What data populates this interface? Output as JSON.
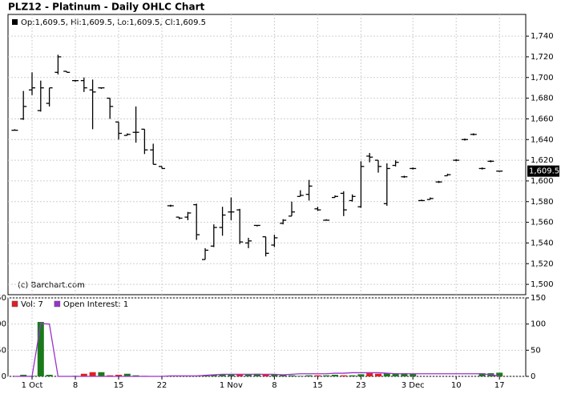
{
  "chart_data": [
    {
      "type": "ohlc",
      "title": "PLZ12 - Platinum - Daily OHLC Chart",
      "legend_text": "Op:1,609.5, Hi:1,609.5, Lo:1,609.5, Cl:1,609.5",
      "watermark": "(c) Barchart.com",
      "color": "#000000",
      "categories": [
        null,
        null,
        "1 Oct",
        null,
        null,
        null,
        null,
        "8",
        null,
        null,
        null,
        null,
        "15",
        null,
        null,
        null,
        null,
        "22",
        null,
        null,
        null,
        null,
        null,
        null,
        null,
        "1 Nov",
        null,
        null,
        null,
        null,
        "8",
        null,
        null,
        null,
        null,
        "15",
        null,
        null,
        null,
        null,
        "23",
        null,
        null,
        null,
        null,
        null,
        "3 Dec",
        null,
        null,
        null,
        null,
        "10",
        null,
        null,
        null,
        null,
        "17"
      ],
      "open": [
        1649,
        1660,
        1688,
        1668,
        1675,
        1705,
        1706,
        1697,
        1697,
        1688,
        1690,
        1680,
        1657,
        1644,
        1647,
        1650,
        1630,
        1614,
        1576,
        1565,
        1565,
        1577,
        1524,
        1537,
        1555,
        1570,
        1572,
        1540,
        1557,
        1546,
        1538,
        1559,
        1566,
        1585,
        1587,
        1573,
        1562,
        1584,
        1588,
        1581,
        1575,
        1624,
        1620,
        1578,
        1615,
        1604,
        1612,
        1581,
        1582,
        1599,
        1605,
        1620,
        1640,
        1645,
        1612,
        1619,
        1609.5
      ],
      "high": [
        1650,
        1687,
        1705,
        1697,
        1690,
        1722,
        1706,
        1697,
        1700,
        1698,
        1690,
        1680,
        1657,
        1646,
        1672,
        1650,
        1636,
        1614,
        1577,
        1565,
        1570,
        1578,
        1535,
        1558,
        1575,
        1584,
        1573,
        1545,
        1557,
        1546,
        1548,
        1563,
        1580,
        1591,
        1601,
        1575,
        1563,
        1586,
        1590,
        1587,
        1619,
        1627,
        1620,
        1617,
        1620,
        1605,
        1613,
        1582,
        1584,
        1600,
        1607,
        1621,
        1641,
        1646,
        1613,
        1620,
        1609.5
      ],
      "low": [
        1649,
        1659,
        1683,
        1667,
        1672,
        1703,
        1705,
        1696,
        1686,
        1650,
        1689,
        1660,
        1640,
        1644,
        1637,
        1626,
        1616,
        1612,
        1575,
        1563,
        1562,
        1543,
        1524,
        1536,
        1547,
        1562,
        1539,
        1535,
        1556,
        1527,
        1536,
        1558,
        1566,
        1585,
        1581,
        1571,
        1562,
        1584,
        1566,
        1580,
        1574,
        1618,
        1608,
        1576,
        1614,
        1603,
        1611,
        1581,
        1582,
        1598,
        1605,
        1619,
        1639,
        1644,
        1611,
        1618,
        1609.5
      ],
      "close": [
        1649,
        1672,
        1690,
        1690,
        1690,
        1720,
        1705,
        1697,
        1690,
        1686,
        1690,
        1672,
        1646,
        1645,
        1647,
        1630,
        1616,
        1612,
        1576,
        1564,
        1569,
        1548,
        1533,
        1555,
        1567,
        1570,
        1541,
        1542,
        1557,
        1530,
        1545,
        1562,
        1570,
        1586,
        1595,
        1572,
        1562,
        1585,
        1572,
        1585,
        1614,
        1623,
        1614,
        1612,
        1618,
        1604,
        1612,
        1581,
        1583,
        1599,
        1606,
        1620,
        1640,
        1645,
        1612,
        1619,
        1609.5
      ],
      "ylim": [
        1490,
        1761
      ],
      "yticks": [
        {
          "value": 1500,
          "label": "1,500"
        },
        {
          "value": 1520,
          "label": "1,520"
        },
        {
          "value": 1540,
          "label": "1,540"
        },
        {
          "value": 1560,
          "label": "1,560"
        },
        {
          "value": 1580,
          "label": "1,580"
        },
        {
          "value": 1600,
          "label": "1,600"
        },
        {
          "value": 1620,
          "label": "1,620"
        },
        {
          "value": 1640,
          "label": "1,640"
        },
        {
          "value": 1660,
          "label": "1,660"
        },
        {
          "value": 1680,
          "label": "1,680"
        },
        {
          "value": 1700,
          "label": "1,700"
        },
        {
          "value": 1720,
          "label": "1,720"
        },
        {
          "value": 1740,
          "label": "1,740"
        }
      ],
      "last_price": {
        "value": 1609.5,
        "label": "1,609.5"
      },
      "grid": true
    },
    {
      "type": "volume",
      "series": [
        {
          "name": "Vol: 7",
          "type": "bar",
          "up_color": "#1a7a1a",
          "down_color": "#e02020",
          "values": [
            0,
            3,
            1,
            104,
            3,
            0,
            0,
            1,
            5,
            8,
            8,
            2,
            3,
            5,
            2,
            1,
            0,
            0,
            1,
            1,
            1,
            1,
            2,
            3,
            3,
            4,
            3,
            3,
            5,
            4,
            4,
            3,
            2,
            1,
            2,
            2,
            2,
            3,
            2,
            2,
            4,
            6,
            5,
            6,
            6,
            6,
            5,
            0,
            0,
            0,
            0,
            0,
            0,
            0,
            6,
            6,
            7
          ]
        },
        {
          "name": "Open Interest: 1",
          "type": "line",
          "color": "#9933cc",
          "values": [
            0,
            0,
            0,
            101,
            100,
            0,
            0,
            0,
            0,
            0,
            0,
            0,
            0,
            0,
            0,
            0,
            0,
            0,
            1,
            1,
            1,
            1,
            2,
            3,
            4,
            4,
            4,
            4,
            4,
            4,
            4,
            3,
            4,
            5,
            5,
            5,
            5,
            6,
            6,
            7,
            7,
            7,
            7,
            6,
            5,
            5,
            5,
            5,
            5,
            5,
            5,
            5,
            5,
            5,
            5,
            3,
            1
          ]
        }
      ],
      "ylim": [
        0,
        150
      ],
      "yticks": [
        0,
        50,
        100,
        150
      ],
      "grid": true
    }
  ]
}
